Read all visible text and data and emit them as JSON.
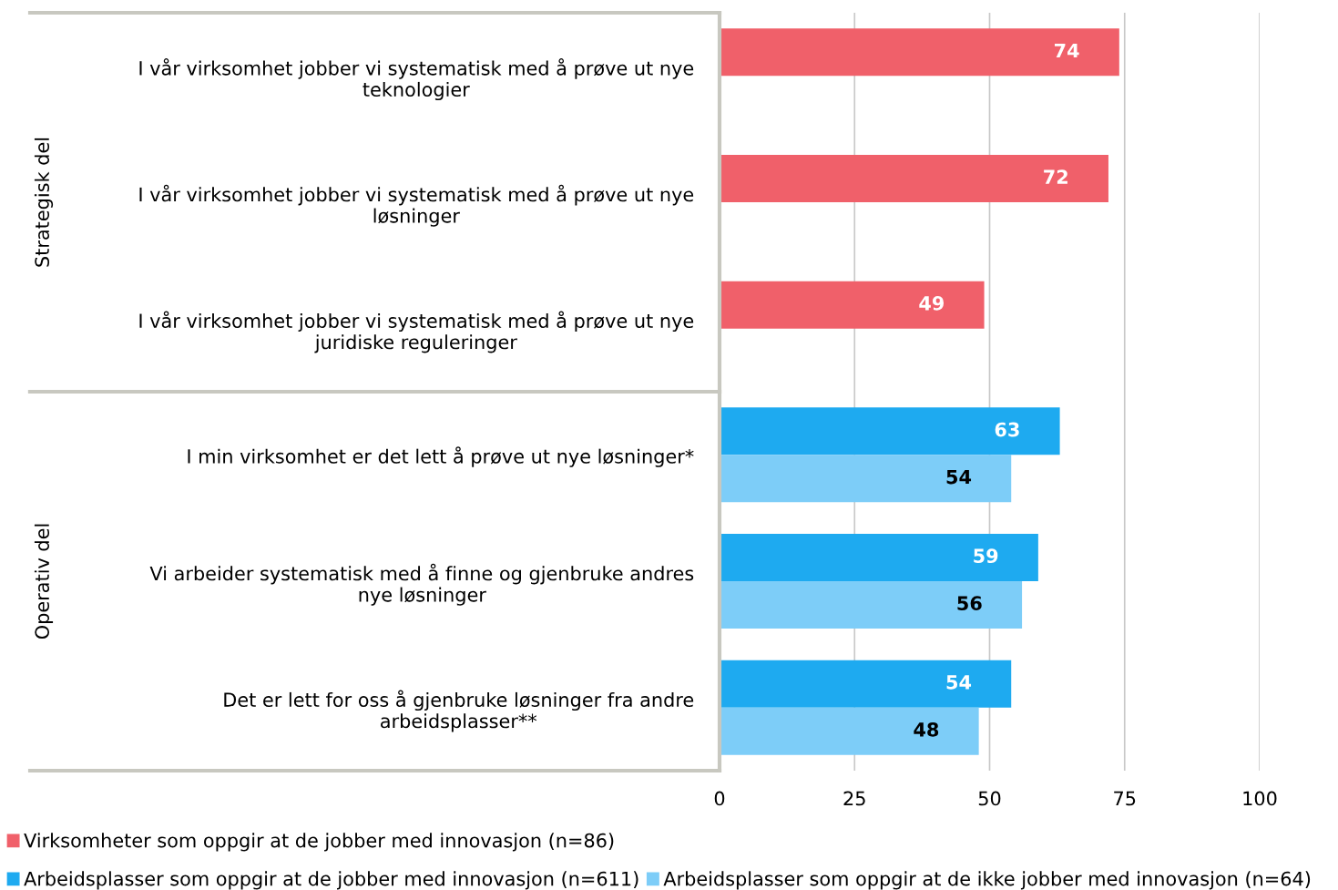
{
  "chart_data": {
    "type": "bar",
    "orientation": "horizontal",
    "categories": [
      "I vår virksomhet jobber vi systematisk med å prøve ut nye\nteknologier",
      "I vår virksomhet jobber vi systematisk med å prøve ut nye\nløsninger",
      "I vår virksomhet jobber vi systematisk med å prøve ut nye\njuridiske reguleringer",
      "I min virksomhet er det lett å prøve ut nye løsninger*",
      "Vi arbeider systematisk med å finne og gjenbruke andres\nnye løsninger",
      "Det er lett for oss å gjenbruke løsninger fra andre\narbeidsplasser**"
    ],
    "series": [
      {
        "name": "Virksomheter som oppgir at de jobber med innovasjon (n=86)",
        "color": "#f0606a",
        "values": [
          74,
          72,
          49,
          null,
          null,
          null
        ]
      },
      {
        "name": "Arbeidsplasser som oppgir at de jobber med innovasjon (n=611)",
        "color": "#1eaaf0",
        "values": [
          null,
          null,
          null,
          63,
          59,
          54
        ]
      },
      {
        "name": "Arbeidsplasser som oppgir at de ikke jobber med innovasjon (n=64)",
        "color": "#7dcdf8",
        "values": [
          null,
          null,
          null,
          54,
          56,
          48
        ]
      }
    ],
    "annotations": [
      "Strategisk del",
      "Operativ del"
    ],
    "xlim": [
      0,
      100
    ],
    "xticks": [
      0,
      25,
      50,
      75,
      100
    ],
    "grid": "x",
    "legend": "bottom",
    "data_labels": true
  }
}
